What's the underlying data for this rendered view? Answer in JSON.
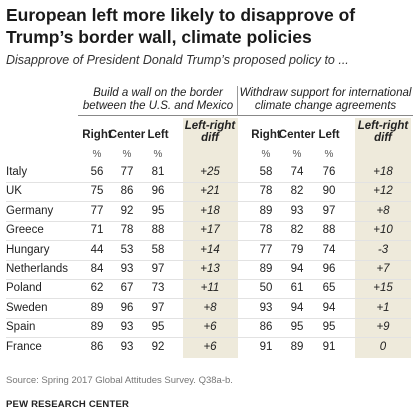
{
  "title": "European left more likely to disapprove of Trump’s border wall, climate policies",
  "subtitle": "Disapprove of President Donald Trump’s proposed policy to ...",
  "groups": {
    "wall": "Build a wall on the border between the U.S. and Mexico",
    "climate": "Withdraw support for international climate change agreements"
  },
  "columns": {
    "right": "Right",
    "center": "Center",
    "left": "Left",
    "diff_line1": "Left-right",
    "diff_line2": "diff",
    "pct": "%"
  },
  "chart_data": {
    "type": "table",
    "title": "European left more likely to disapprove of Trump’s border wall, climate policies",
    "countries": [
      "Italy",
      "UK",
      "Germany",
      "Greece",
      "Hungary",
      "Netherlands",
      "Poland",
      "Sweden",
      "Spain",
      "France"
    ],
    "series": [
      {
        "name": "Build a wall on the border between the U.S. and Mexico",
        "right": [
          "56",
          "75",
          "77",
          "71",
          "44",
          "84",
          "62",
          "89",
          "89",
          "86"
        ],
        "center": [
          "77",
          "86",
          "92",
          "78",
          "53",
          "93",
          "67",
          "96",
          "93",
          "93"
        ],
        "left": [
          "81",
          "96",
          "95",
          "88",
          "58",
          "97",
          "73",
          "97",
          "95",
          "92"
        ],
        "diff": [
          "+25",
          "+21",
          "+18",
          "+17",
          "+14",
          "+13",
          "+11",
          "+8",
          "+6",
          "+6"
        ]
      },
      {
        "name": "Withdraw support for international climate change agreements",
        "right": [
          "58",
          "78",
          "89",
          "78",
          "77",
          "89",
          "50",
          "93",
          "86",
          "91"
        ],
        "center": [
          "74",
          "82",
          "93",
          "82",
          "79",
          "94",
          "61",
          "94",
          "95",
          "89"
        ],
        "left": [
          "76",
          "90",
          "97",
          "88",
          "74",
          "96",
          "65",
          "94",
          "95",
          "91"
        ],
        "diff": [
          "+18",
          "+12",
          "+8",
          "+10",
          "-3",
          "+7",
          "+15",
          "+1",
          "+9",
          "0"
        ]
      }
    ]
  },
  "source": "Source: Spring 2017 Global Attitudes Survey. Q38a-b.",
  "org": "PEW RESEARCH CENTER",
  "colors": {
    "shade": "#eeeadb"
  }
}
